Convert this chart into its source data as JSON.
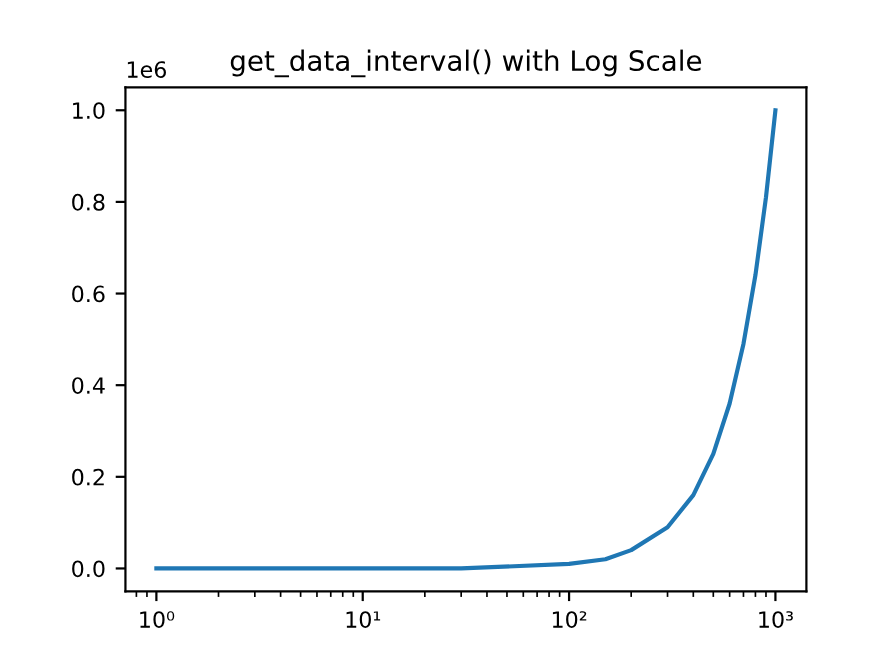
{
  "chart_data": {
    "type": "line",
    "title": "get_data_interval() with Log Scale",
    "x": [
      1,
      10,
      30,
      100,
      150,
      200,
      300,
      400,
      500,
      600,
      700,
      800,
      900,
      1000
    ],
    "values": [
      0,
      0,
      0,
      0.01,
      0.02,
      0.04,
      0.09,
      0.16,
      0.25,
      0.36,
      0.49,
      0.64,
      0.81,
      1.0
    ],
    "color": "#1f77b4",
    "log": "x",
    "xlim": [
      0.708,
      1413
    ],
    "ylim": [
      -0.05,
      1.05
    ],
    "xticks": [
      {
        "value": 1,
        "label": "10⁰"
      },
      {
        "value": 10,
        "label": "10¹"
      },
      {
        "value": 100,
        "label": "10²"
      },
      {
        "value": 1000,
        "label": "10³"
      }
    ],
    "yticks": [
      {
        "value": 0,
        "label": "0.0"
      },
      {
        "value": 0.2,
        "label": "0.2"
      },
      {
        "value": 0.4,
        "label": "0.4"
      },
      {
        "value": 0.6,
        "label": "0.6"
      },
      {
        "value": 0.8,
        "label": "0.8"
      },
      {
        "value": 1.0,
        "label": "1.0"
      }
    ],
    "annotations": [
      "1e6"
    ]
  }
}
